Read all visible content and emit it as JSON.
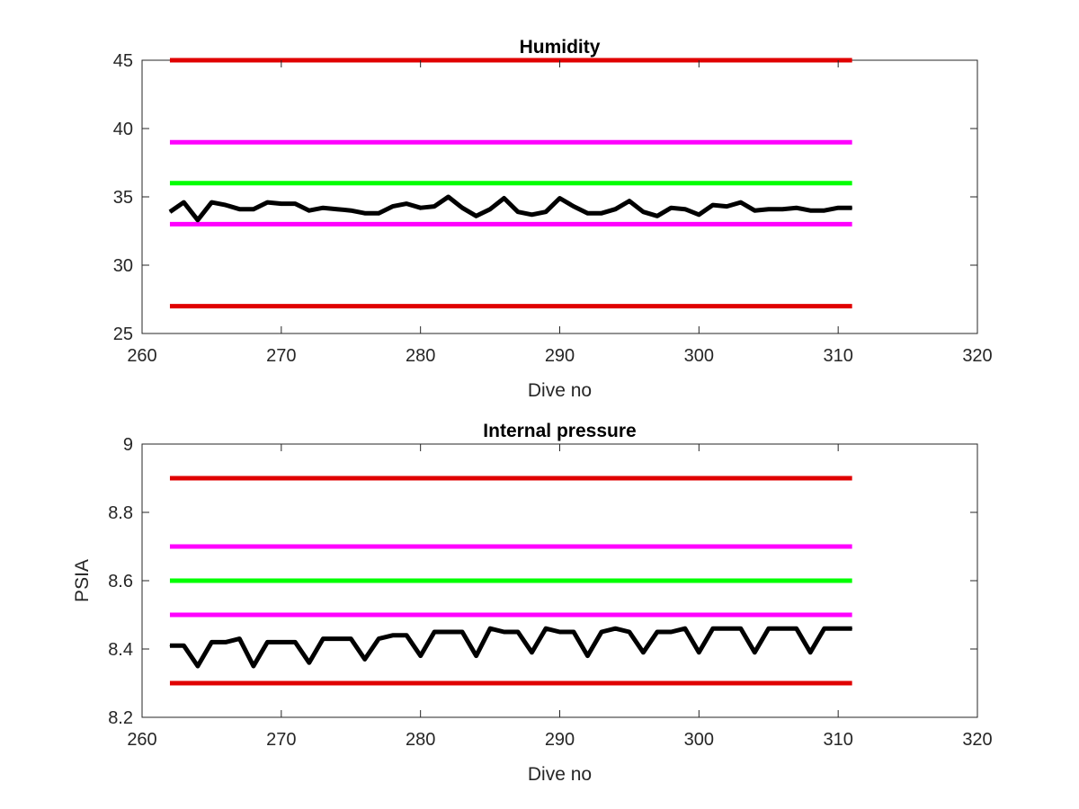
{
  "chart_data": [
    {
      "type": "line",
      "title": "Humidity",
      "xlabel": "Dive no",
      "ylabel": "",
      "xlim": [
        260,
        320
      ],
      "ylim": [
        25,
        45
      ],
      "xticks": [
        260,
        270,
        280,
        290,
        300,
        310,
        320
      ],
      "yticks": [
        25,
        30,
        35,
        40,
        45
      ],
      "xtick_labels": [
        "260",
        "270",
        "280",
        "290",
        "300",
        "310",
        "320"
      ],
      "ytick_labels": [
        "25",
        "30",
        "35",
        "40",
        "45"
      ],
      "grid": false,
      "reference_lines": [
        {
          "y": 45,
          "x_range": [
            262,
            311
          ],
          "color": "#e00000"
        },
        {
          "y": 39,
          "x_range": [
            262,
            311
          ],
          "color": "#ff00ff"
        },
        {
          "y": 36,
          "x_range": [
            262,
            311
          ],
          "color": "#00ff00"
        },
        {
          "y": 33,
          "x_range": [
            262,
            311
          ],
          "color": "#ff00ff"
        },
        {
          "y": 27,
          "x_range": [
            262,
            311
          ],
          "color": "#e00000"
        }
      ],
      "series": [
        {
          "color": "#000000",
          "x": [
            262,
            263,
            264,
            265,
            266,
            267,
            268,
            269,
            270,
            271,
            272,
            273,
            274,
            275,
            276,
            277,
            278,
            279,
            280,
            281,
            282,
            283,
            284,
            285,
            286,
            287,
            288,
            289,
            290,
            291,
            292,
            293,
            294,
            295,
            296,
            297,
            298,
            299,
            300,
            301,
            302,
            303,
            304,
            305,
            306,
            307,
            308,
            309,
            310,
            311
          ],
          "y": [
            33.9,
            34.6,
            33.3,
            34.6,
            34.4,
            34.1,
            34.1,
            34.6,
            34.5,
            34.5,
            34.0,
            34.2,
            34.1,
            34.0,
            33.8,
            33.8,
            34.3,
            34.5,
            34.2,
            34.3,
            35.0,
            34.2,
            33.6,
            34.1,
            34.9,
            33.9,
            33.7,
            33.9,
            34.9,
            34.3,
            33.8,
            33.8,
            34.1,
            34.7,
            33.9,
            33.6,
            34.2,
            34.1,
            33.7,
            34.4,
            34.3,
            34.6,
            34.0,
            34.1,
            34.1,
            34.2,
            34.0,
            34.0,
            34.2,
            34.2
          ]
        }
      ]
    },
    {
      "type": "line",
      "title": "Internal pressure",
      "xlabel": "Dive no",
      "ylabel": "PSIA",
      "xlim": [
        260,
        320
      ],
      "ylim": [
        8.2,
        9.0
      ],
      "xticks": [
        260,
        270,
        280,
        290,
        300,
        310,
        320
      ],
      "yticks": [
        8.2,
        8.4,
        8.6,
        8.8,
        9.0
      ],
      "xtick_labels": [
        "260",
        "270",
        "280",
        "290",
        "300",
        "310",
        "320"
      ],
      "ytick_labels": [
        "8.2",
        "8.4",
        "8.6",
        "8.8",
        "9"
      ],
      "grid": false,
      "reference_lines": [
        {
          "y": 8.9,
          "x_range": [
            262,
            311
          ],
          "color": "#e00000"
        },
        {
          "y": 8.7,
          "x_range": [
            262,
            311
          ],
          "color": "#ff00ff"
        },
        {
          "y": 8.6,
          "x_range": [
            262,
            311
          ],
          "color": "#00ff00"
        },
        {
          "y": 8.5,
          "x_range": [
            262,
            311
          ],
          "color": "#ff00ff"
        },
        {
          "y": 8.3,
          "x_range": [
            262,
            311
          ],
          "color": "#e00000"
        }
      ],
      "series": [
        {
          "color": "#000000",
          "x": [
            262,
            263,
            264,
            265,
            266,
            267,
            268,
            269,
            270,
            271,
            272,
            273,
            274,
            275,
            276,
            277,
            278,
            279,
            280,
            281,
            282,
            283,
            284,
            285,
            286,
            287,
            288,
            289,
            290,
            291,
            292,
            293,
            294,
            295,
            296,
            297,
            298,
            299,
            300,
            301,
            302,
            303,
            304,
            305,
            306,
            307,
            308,
            309,
            310,
            311
          ],
          "y": [
            8.41,
            8.41,
            8.35,
            8.42,
            8.42,
            8.43,
            8.35,
            8.42,
            8.42,
            8.42,
            8.36,
            8.43,
            8.43,
            8.43,
            8.37,
            8.43,
            8.44,
            8.44,
            8.38,
            8.45,
            8.45,
            8.45,
            8.38,
            8.46,
            8.45,
            8.45,
            8.39,
            8.46,
            8.45,
            8.45,
            8.38,
            8.45,
            8.46,
            8.45,
            8.39,
            8.45,
            8.45,
            8.46,
            8.39,
            8.46,
            8.46,
            8.46,
            8.39,
            8.46,
            8.46,
            8.46,
            8.39,
            8.46,
            8.46,
            8.46
          ]
        }
      ]
    }
  ]
}
